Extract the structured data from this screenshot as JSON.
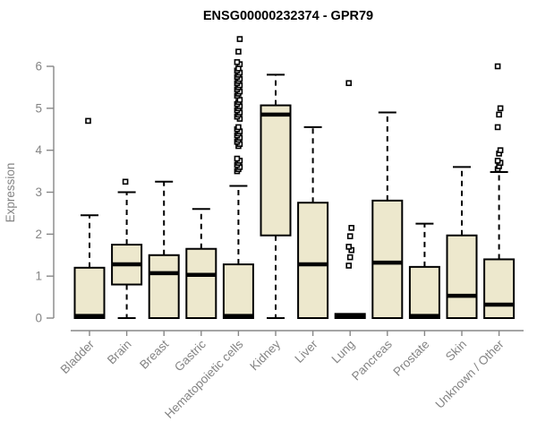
{
  "title": "ENSG00000232374 - GPR79",
  "colors": {
    "background": "#ffffff",
    "box_fill": "#EDE8CD",
    "box_stroke": "#000000",
    "median_stroke": "#000000",
    "whisker_stroke": "#000000",
    "outlier_stroke": "#000000",
    "outlier_fill": "#ffffff",
    "axis_line": "#878787",
    "axis_text": "#848484",
    "title_text": "#000000"
  },
  "chart_data": {
    "type": "boxplot",
    "title": "ENSG00000232374 - GPR79",
    "xlabel": "",
    "ylabel": "Expression",
    "ylim": [
      0,
      6.8
    ],
    "yticks": [
      0,
      1,
      2,
      3,
      4,
      5,
      6
    ],
    "grid": false,
    "legend": "none",
    "categories": [
      "Bladder",
      "Brain",
      "Breast",
      "Gastric",
      "Hematopoietic cells",
      "Kidney",
      "Liver",
      "Lung",
      "Pancreas",
      "Prostate",
      "Skin",
      "Unknown / Other"
    ],
    "series": [
      {
        "name": "Bladder",
        "min": 0,
        "q1": 0,
        "median": 0.05,
        "q3": 1.2,
        "max": 2.45,
        "outliers": [
          4.7
        ]
      },
      {
        "name": "Brain",
        "min": 0,
        "q1": 0.8,
        "median": 1.28,
        "q3": 1.75,
        "max": 3.0,
        "outliers": [
          3.25
        ]
      },
      {
        "name": "Breast",
        "min": 0,
        "q1": 0,
        "median": 1.07,
        "q3": 1.5,
        "max": 3.25,
        "outliers": []
      },
      {
        "name": "Gastric",
        "min": 0,
        "q1": 0,
        "median": 1.03,
        "q3": 1.65,
        "max": 2.6,
        "outliers": []
      },
      {
        "name": "Hematopoietic cells",
        "min": 0,
        "q1": 0,
        "median": 0.05,
        "q3": 1.28,
        "max": 3.15,
        "outliers": [
          3.5,
          3.55,
          3.6,
          3.65,
          3.7,
          3.75,
          3.8,
          4.1,
          4.15,
          4.2,
          4.25,
          4.3,
          4.35,
          4.4,
          4.45,
          4.5,
          4.55,
          4.75,
          4.8,
          4.85,
          4.9,
          4.95,
          5.0,
          5.05,
          5.1,
          5.15,
          5.2,
          5.3,
          5.35,
          5.4,
          5.45,
          5.5,
          5.55,
          5.6,
          5.65,
          5.7,
          5.75,
          5.8,
          5.85,
          5.9,
          5.95,
          6.05,
          6.1,
          6.35,
          6.65
        ]
      },
      {
        "name": "Kidney",
        "min": 0,
        "q1": 1.97,
        "median": 4.85,
        "q3": 5.07,
        "max": 5.8,
        "outliers": []
      },
      {
        "name": "Liver",
        "min": 0,
        "q1": 0,
        "median": 1.28,
        "q3": 2.75,
        "max": 4.55,
        "outliers": []
      },
      {
        "name": "Lung",
        "min": 0,
        "q1": 0,
        "median": 0.05,
        "q3": 0.1,
        "max": 0.12,
        "outliers": [
          1.25,
          1.45,
          1.62,
          1.7,
          1.95,
          2.15,
          5.6
        ]
      },
      {
        "name": "Pancreas",
        "min": 0,
        "q1": 0,
        "median": 1.32,
        "q3": 2.8,
        "max": 4.9,
        "outliers": []
      },
      {
        "name": "Prostate",
        "min": 0,
        "q1": 0,
        "median": 0.05,
        "q3": 1.22,
        "max": 2.25,
        "outliers": []
      },
      {
        "name": "Skin",
        "min": 0,
        "q1": 0,
        "median": 0.53,
        "q3": 1.97,
        "max": 3.6,
        "outliers": []
      },
      {
        "name": "Unknown / Other",
        "min": 0,
        "q1": 0,
        "median": 0.32,
        "q3": 1.4,
        "max": 3.48,
        "outliers": [
          3.55,
          3.62,
          3.7,
          3.75,
          3.92,
          4.0,
          4.55,
          4.85,
          5.0,
          6.0
        ]
      }
    ]
  }
}
